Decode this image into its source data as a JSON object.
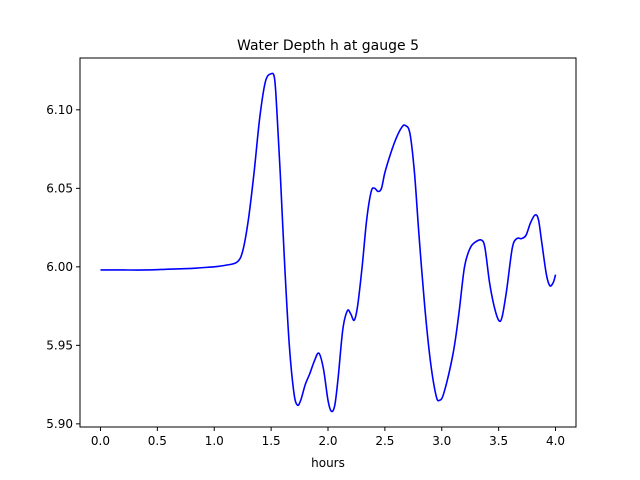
{
  "chart_data": {
    "type": "line",
    "title": "Water Depth h at gauge 5",
    "xlabel": "hours",
    "ylabel": "",
    "xlim": [
      -0.18,
      4.18
    ],
    "ylim": [
      5.898,
      6.133
    ],
    "x_ticks": [
      0.0,
      0.5,
      1.0,
      1.5,
      2.0,
      2.5,
      3.0,
      3.5,
      4.0
    ],
    "x_tick_labels": [
      "0.0",
      "0.5",
      "1.0",
      "1.5",
      "2.0",
      "2.5",
      "3.0",
      "3.5",
      "4.0"
    ],
    "y_ticks": [
      5.9,
      5.95,
      6.0,
      6.05,
      6.1
    ],
    "y_tick_labels": [
      "5.90",
      "5.95",
      "6.00",
      "6.05",
      "6.10"
    ],
    "grid": false,
    "legend": "none",
    "series": [
      {
        "color": "#0000ff",
        "x": [
          0.0,
          0.2,
          0.4,
          0.6,
          0.8,
          0.9,
          1.0,
          1.1,
          1.2,
          1.25,
          1.3,
          1.35,
          1.4,
          1.45,
          1.5,
          1.53,
          1.55,
          1.58,
          1.62,
          1.66,
          1.7,
          1.73,
          1.76,
          1.8,
          1.84,
          1.88,
          1.92,
          1.96,
          2.0,
          2.03,
          2.06,
          2.09,
          2.13,
          2.17,
          2.2,
          2.23,
          2.26,
          2.3,
          2.34,
          2.38,
          2.41,
          2.44,
          2.47,
          2.5,
          2.55,
          2.6,
          2.65,
          2.68,
          2.72,
          2.76,
          2.8,
          2.85,
          2.9,
          2.95,
          2.98,
          3.02,
          3.1,
          3.15,
          3.2,
          3.25,
          3.3,
          3.35,
          3.38,
          3.42,
          3.46,
          3.5,
          3.53,
          3.57,
          3.62,
          3.66,
          3.7,
          3.74,
          3.78,
          3.82,
          3.85,
          3.88,
          3.92,
          3.95,
          3.98,
          4.0
        ],
        "y": [
          5.998,
          5.998,
          5.998,
          5.9985,
          5.999,
          5.9995,
          6.0,
          6.001,
          6.003,
          6.01,
          6.03,
          6.06,
          6.095,
          6.118,
          6.123,
          6.12,
          6.1,
          6.06,
          6.0,
          5.95,
          5.92,
          5.912,
          5.915,
          5.925,
          5.932,
          5.94,
          5.945,
          5.935,
          5.915,
          5.908,
          5.912,
          5.93,
          5.96,
          5.972,
          5.97,
          5.966,
          5.975,
          6.0,
          6.03,
          6.048,
          6.05,
          6.048,
          6.05,
          6.06,
          6.072,
          6.082,
          6.089,
          6.09,
          6.085,
          6.06,
          6.02,
          5.975,
          5.94,
          5.918,
          5.915,
          5.92,
          5.945,
          5.97,
          6.0,
          6.012,
          6.016,
          6.017,
          6.012,
          5.99,
          5.975,
          5.966,
          5.968,
          5.985,
          6.012,
          6.018,
          6.018,
          6.02,
          6.028,
          6.033,
          6.03,
          6.015,
          5.995,
          5.988,
          5.99,
          5.995
        ]
      }
    ]
  }
}
